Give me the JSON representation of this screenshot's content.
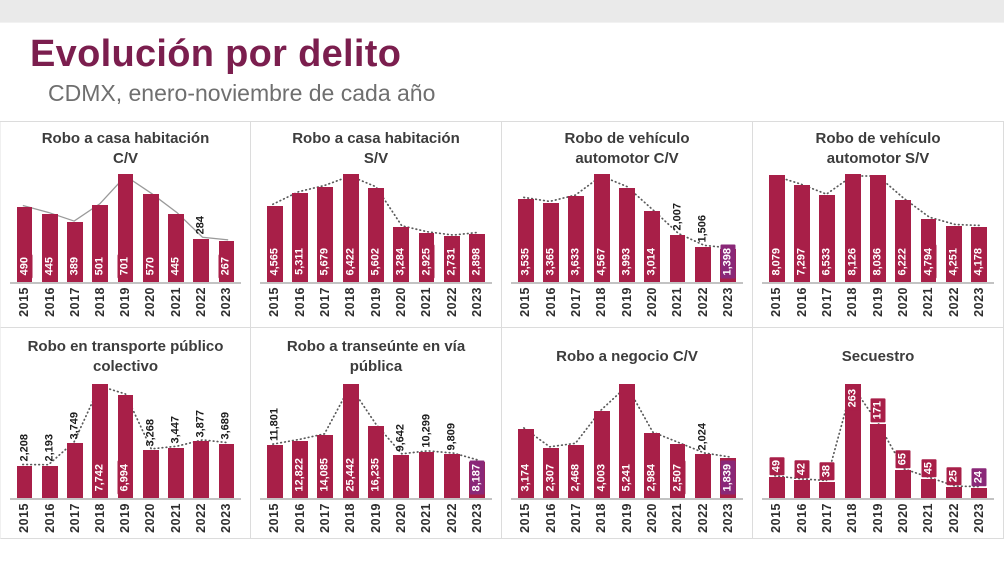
{
  "page": {
    "title": "Evolución por delito",
    "subtitle": "CDMX, enero-noviembre de cada año"
  },
  "colors": {
    "bar": "#a81f48",
    "highlight": "#8a2878",
    "title_accent": "#7b1e4e",
    "trend_dotted": "#5a5a5a",
    "trend_solid": "#9a9a9a"
  },
  "chart_data": [
    {
      "type": "bar",
      "title": "Robo a casa habitación\nC/V",
      "categories": [
        "2015",
        "2016",
        "2017",
        "2018",
        "2019",
        "2020",
        "2021",
        "2022",
        "2023"
      ],
      "values": [
        490,
        445,
        389,
        501,
        701,
        570,
        445,
        284,
        267
      ],
      "labels": [
        "490",
        "445",
        "389",
        "501",
        "701",
        "570",
        "445",
        "284",
        "267"
      ],
      "label_modes": [
        "in",
        "in",
        "in",
        "in",
        "in",
        "in",
        "in",
        "out",
        "in"
      ],
      "trend_line": "solid"
    },
    {
      "type": "bar",
      "title": "Robo a casa habitación\nS/V",
      "categories": [
        "2015",
        "2016",
        "2017",
        "2018",
        "2019",
        "2020",
        "2021",
        "2022",
        "2023"
      ],
      "values": [
        4565,
        5311,
        5679,
        6422,
        5602,
        3284,
        2925,
        2731,
        2898
      ],
      "labels": [
        "4,565",
        "5,311",
        "5,679",
        "6,422",
        "5,602",
        "3,284",
        "2,925",
        "2,731",
        "2,898"
      ],
      "label_modes": [
        "in",
        "in",
        "in",
        "in",
        "in",
        "in",
        "in",
        "in",
        "in"
      ],
      "trend_line": "dotted"
    },
    {
      "type": "bar",
      "title": "Robo de vehículo\nautomotor C/V",
      "categories": [
        "2015",
        "2016",
        "2017",
        "2018",
        "2019",
        "2020",
        "2021",
        "2022",
        "2023"
      ],
      "values": [
        3535,
        3365,
        3633,
        4567,
        3993,
        3014,
        2007,
        1506,
        1398
      ],
      "labels": [
        "3,535",
        "3,365",
        "3,633",
        "4,567",
        "3,993",
        "3,014",
        "2,007",
        "1,506",
        "1,398"
      ],
      "label_modes": [
        "in",
        "in",
        "in",
        "in",
        "in",
        "in",
        "out",
        "out",
        "hl"
      ],
      "trend_line": "dotted"
    },
    {
      "type": "bar",
      "title": "Robo de vehículo\nautomotor S/V",
      "categories": [
        "2015",
        "2016",
        "2017",
        "2018",
        "2019",
        "2020",
        "2021",
        "2022",
        "2023"
      ],
      "values": [
        8079,
        7297,
        6533,
        8126,
        8036,
        6222,
        4794,
        4251,
        4178
      ],
      "labels": [
        "8,079",
        "7,297",
        "6,533",
        "8,126",
        "8,036",
        "6,222",
        "4,794",
        "4,251",
        "4,178"
      ],
      "label_modes": [
        "in",
        "in",
        "in",
        "in",
        "in",
        "in",
        "in",
        "in",
        "in"
      ],
      "trend_line": "dotted"
    },
    {
      "type": "bar",
      "title": "Robo en transporte público\ncolectivo",
      "categories": [
        "2015",
        "2016",
        "2017",
        "2018",
        "2019",
        "2020",
        "2021",
        "2022",
        "2023"
      ],
      "values": [
        2208,
        2193,
        3749,
        7742,
        6994,
        3268,
        3447,
        3877,
        3689
      ],
      "labels": [
        "2,208",
        "2,193",
        "3,749",
        "7,742",
        "6,994",
        "3,268",
        "3,447",
        "3,877",
        "3,689"
      ],
      "label_modes": [
        "out",
        "out",
        "out",
        "in",
        "in",
        "out",
        "out",
        "out",
        "out"
      ],
      "trend_line": "dotted"
    },
    {
      "type": "bar",
      "title": "Robo a transeúnte en vía\npública",
      "categories": [
        "2015",
        "2016",
        "2017",
        "2018",
        "2019",
        "2020",
        "2021",
        "2022",
        "2023"
      ],
      "values": [
        11801,
        12822,
        14085,
        25442,
        16235,
        9642,
        10299,
        9809,
        8187
      ],
      "labels": [
        "11,801",
        "12,822",
        "14,085",
        "25,442",
        "16,235",
        "9,642",
        "10,299",
        "9,809",
        "8,187"
      ],
      "label_modes": [
        "out",
        "in",
        "in",
        "in",
        "in",
        "out",
        "out",
        "out",
        "hl"
      ],
      "trend_line": "dotted"
    },
    {
      "type": "bar",
      "title": "Robo a negocio C/V",
      "categories": [
        "2015",
        "2016",
        "2017",
        "2018",
        "2019",
        "2020",
        "2021",
        "2022",
        "2023"
      ],
      "values": [
        3174,
        2307,
        2468,
        4003,
        5241,
        2984,
        2507,
        2024,
        1839
      ],
      "labels": [
        "3,174",
        "2,307",
        "2,468",
        "4,003",
        "5,241",
        "2,984",
        "2,507",
        "2,024",
        "1,839"
      ],
      "label_modes": [
        "in",
        "in",
        "in",
        "in",
        "in",
        "in",
        "in",
        "out",
        "hl"
      ],
      "trend_line": "dotted"
    },
    {
      "type": "bar",
      "title": "Secuestro",
      "categories": [
        "2015",
        "2016",
        "2017",
        "2018",
        "2019",
        "2020",
        "2021",
        "2022",
        "2023"
      ],
      "values": [
        49,
        42,
        38,
        263,
        171,
        65,
        45,
        25,
        24
      ],
      "labels": [
        "49",
        "42",
        "38",
        "263",
        "171",
        "65",
        "45",
        "25",
        "24"
      ],
      "label_modes": [
        "box",
        "box",
        "box",
        "box",
        "box",
        "box",
        "box",
        "box",
        "hlbox"
      ],
      "trend_line": "dotted"
    }
  ]
}
